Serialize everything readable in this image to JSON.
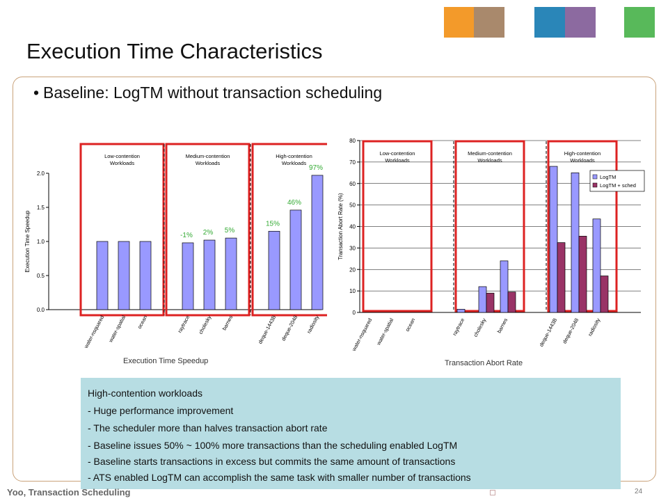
{
  "slide": {
    "title": "Execution Time Characteristics",
    "bullet": "Baseline: LogTM without transaction scheduling",
    "footer": "Yoo, Transaction Scheduling",
    "page_number": "24"
  },
  "colors": {
    "bar_primary": "#9999ff",
    "bar_secondary": "#993366",
    "highlight_box": "#dd2222",
    "pct_label": "#33aa33",
    "callout_bg": "#b7dde3"
  },
  "decor": {
    "squares": [
      {
        "name": "orange-square",
        "color": "#f39a2a"
      },
      {
        "name": "photo-square-1",
        "color": "#a9896c"
      },
      {
        "name": "blue-square",
        "color": "#2a86b8"
      },
      {
        "name": "photo-square-2",
        "color": "#8c6aa0"
      },
      {
        "name": "green-square",
        "color": "#58b95a"
      }
    ]
  },
  "chart_data": [
    {
      "type": "bar",
      "caption": "Execution Time Speedup",
      "ylabel": "Execution Time Speedup",
      "ylim": [
        0,
        2.0
      ],
      "yticks": [
        "0.0",
        "0.5",
        "1.0",
        "1.5",
        "2.0"
      ],
      "categories": [
        "water-nsquared",
        "water-spatial",
        "ocean",
        "raytrace",
        "cholesky",
        "barnes",
        "deque-1443B",
        "deque-2048",
        "radiosity"
      ],
      "values": [
        1.0,
        1.0,
        1.0,
        0.98,
        1.02,
        1.05,
        1.15,
        1.46,
        1.97
      ],
      "labels": [
        "",
        "",
        "",
        "-1%",
        "2%",
        "5%",
        "15%",
        "46%",
        "97%"
      ],
      "groups": [
        {
          "line1": "Low-contention",
          "line2": "Workloads"
        },
        {
          "line1": "Medium-contention",
          "line2": "Workloads"
        },
        {
          "line1": "High-contention",
          "line2": "Workloads"
        }
      ]
    },
    {
      "type": "bar",
      "caption": "Transaction Abort Rate",
      "ylabel": "Transaction Abort Rate (%)",
      "ylim": [
        0,
        80
      ],
      "yticks": [
        "0",
        "10",
        "20",
        "30",
        "40",
        "50",
        "60",
        "70",
        "80"
      ],
      "categories": [
        "water-nsquared",
        "water-spatial",
        "ocean",
        "raytrace",
        "cholesky",
        "barnes",
        "deque-1443B",
        "deque-2048",
        "radiosity"
      ],
      "series": [
        {
          "name": "LogTM",
          "values": [
            0,
            0,
            0,
            1.5,
            12,
            24,
            68,
            65,
            43.5
          ]
        },
        {
          "name": "LogTM + sched",
          "values": [
            0,
            0,
            0,
            0,
            9,
            9.5,
            32.5,
            35.5,
            17
          ]
        }
      ],
      "legend": "top-right",
      "groups": [
        {
          "line1": "Low-contention",
          "line2": "Workloads"
        },
        {
          "line1": "Medium-contention",
          "line2": "Workloads"
        },
        {
          "line1": "High-contention",
          "line2": "Workloads"
        }
      ]
    }
  ],
  "callout": {
    "lines": [
      "High-contention  workloads",
      "-  Huge  performance  improvement",
      "-  The  scheduler  more  than  halves  transaction  abort  rate",
      "-  Baseline  issues  50%  ~  100%  more  transactions  than  the  scheduling  enabled  LogTM",
      "-  Baseline  starts  transactions  in  excess  but  commits  the  same  amount  of  transactions",
      "-  ATS  enabled  LogTM  can  accomplish  the  same  task  with  smaller  number  of  transactions"
    ]
  }
}
